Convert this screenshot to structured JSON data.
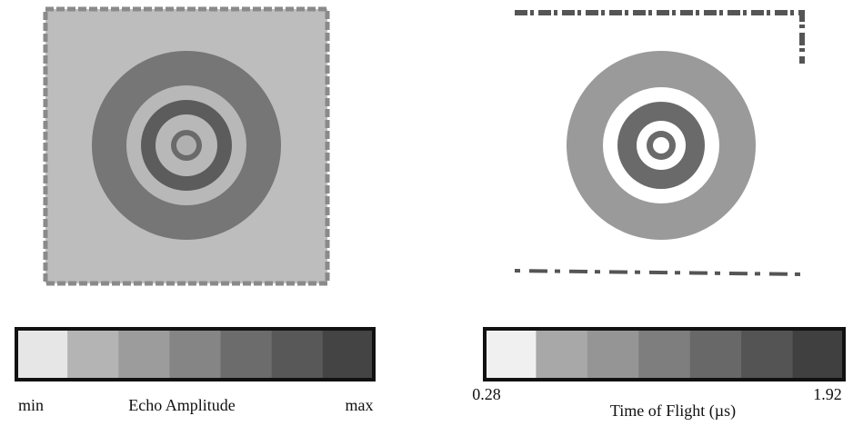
{
  "panels": [
    {
      "colorbar": {
        "colors": [
          "#e6e6e6",
          "#b4b4b4",
          "#9c9c9c",
          "#858585",
          "#6c6c6c",
          "#585858",
          "#444444"
        ],
        "min_label": "min",
        "title": "Echo Amplitude",
        "max_label": "max"
      }
    },
    {
      "colorbar": {
        "colors": [
          "#f0f0f0",
          "#a8a8a8",
          "#959595",
          "#7e7e7e",
          "#686868",
          "#545454",
          "#404040"
        ],
        "min_label": "0.28",
        "title": "Time of Flight (µs)",
        "max_label": "1.92"
      }
    }
  ]
}
